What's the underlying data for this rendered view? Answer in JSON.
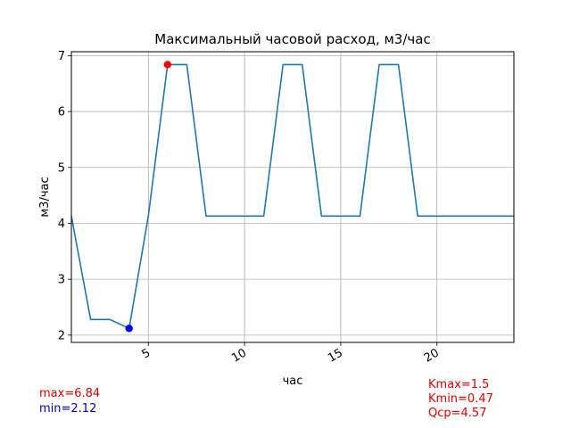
{
  "chart_data": {
    "type": "line",
    "title": "Максимальный часовой расход, м3/час",
    "xlabel": "час",
    "ylabel": "м3/час",
    "xlim": [
      1,
      24
    ],
    "ylim": [
      1.87,
      7.07
    ],
    "xticks": [
      5,
      10,
      15,
      20
    ],
    "yticks": [
      2,
      3,
      4,
      5,
      6,
      7
    ],
    "grid": true,
    "series": [
      {
        "color": "#1f77b4",
        "x": [
          1,
          2,
          3,
          4,
          5,
          6,
          7,
          8,
          9,
          10,
          11,
          12,
          13,
          14,
          15,
          16,
          17,
          18,
          19,
          20,
          21,
          22,
          23,
          24
        ],
        "y": [
          4.13,
          2.28,
          2.28,
          2.12,
          4.13,
          6.84,
          6.84,
          4.13,
          4.13,
          4.13,
          4.13,
          6.84,
          6.84,
          4.13,
          4.13,
          4.13,
          6.84,
          6.84,
          4.13,
          4.13,
          4.13,
          4.13,
          4.13,
          4.13
        ]
      }
    ],
    "markers": [
      {
        "id": "max",
        "x": 6,
        "y": 6.84,
        "color": "#ff0000"
      },
      {
        "id": "min",
        "x": 4,
        "y": 2.12,
        "color": "#0000ff"
      }
    ]
  },
  "stats": {
    "max_text": "max=6.84",
    "min_text": "min=2.12",
    "kmax_text": "Kmax=1.5",
    "kmin_text": "Kmin=0.47",
    "qcp_text": "Qcp=4.57",
    "max_color": "#e00000",
    "min_color": "#0000c0",
    "k_color": "#e00000"
  }
}
